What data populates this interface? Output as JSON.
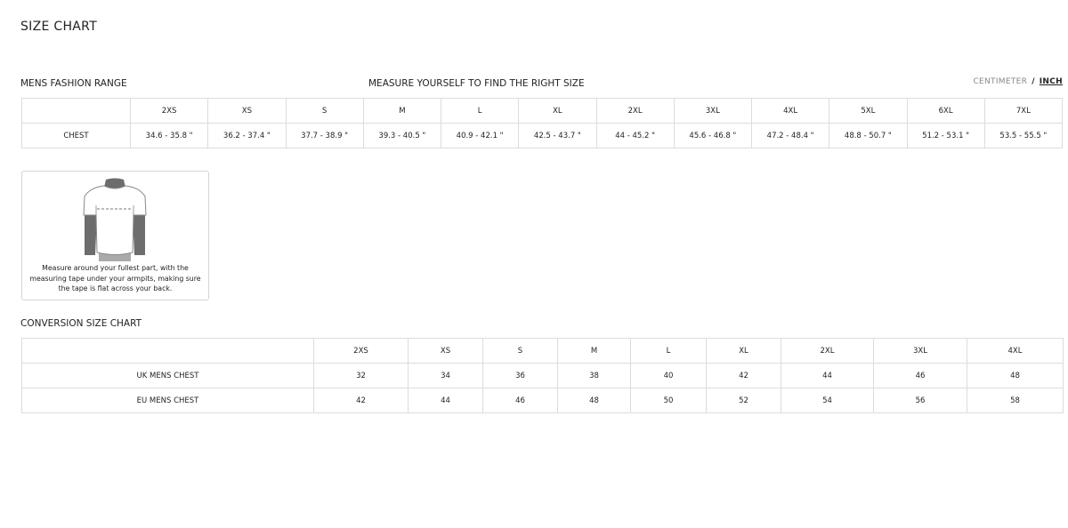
{
  "title": "SIZE CHART",
  "mens_range": {
    "label": "MENS FASHION RANGE",
    "instruction": "MEASURE YOURSELF TO FIND THE RIGHT SIZE",
    "units": {
      "centimeter": "CENTIMETER",
      "separator": "/",
      "inch": "INCH",
      "selected": "INCH"
    },
    "sizes": [
      "2XS",
      "XS",
      "S",
      "M",
      "L",
      "XL",
      "2XL",
      "3XL",
      "4XL",
      "5XL",
      "6XL",
      "7XL"
    ],
    "rows": [
      {
        "label": "CHEST",
        "values": [
          "34.6 - 35.8 \"",
          "36.2 - 37.4 \"",
          "37.7 - 38.9 \"",
          "39.3 - 40.5 \"",
          "40.9 - 42.1 \"",
          "42.5 - 43.7 \"",
          "44 - 45.2 \"",
          "45.6 - 46.8 \"",
          "47.2 - 48.4 \"",
          "48.8 - 50.7 \"",
          "51.2 - 53.1 \"",
          "53.5 - 55.5 \""
        ]
      }
    ]
  },
  "guide": {
    "icon": "t-shirt-chest-measure-illustration",
    "text": "Measure around your fullest part, with the measuring tape under your armpits, making sure the tape is flat across your back."
  },
  "conversion": {
    "label": "CONVERSION SIZE CHART",
    "sizes": [
      "2XS",
      "XS",
      "S",
      "M",
      "L",
      "XL",
      "2XL",
      "3XL",
      "4XL"
    ],
    "rows": [
      {
        "label": "UK MENS CHEST",
        "values": [
          "32",
          "34",
          "36",
          "38",
          "40",
          "42",
          "44",
          "46",
          "48"
        ]
      },
      {
        "label": "EU MENS CHEST",
        "values": [
          "42",
          "44",
          "46",
          "48",
          "50",
          "52",
          "54",
          "56",
          "58"
        ]
      }
    ]
  }
}
